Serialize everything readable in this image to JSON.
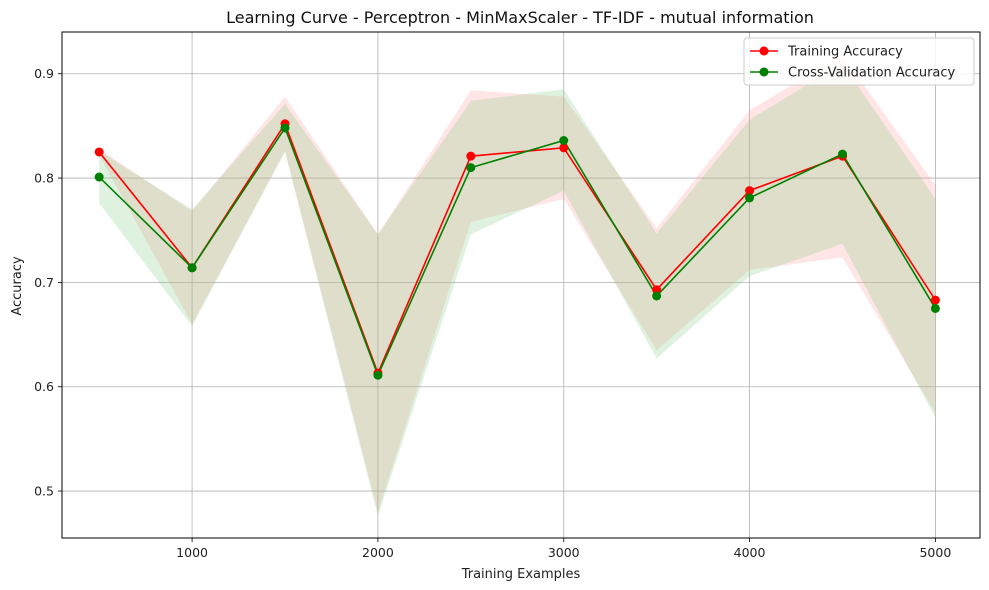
{
  "chart_data": {
    "type": "line",
    "title": "Learning Curve - Perceptron - MinMaxScaler - TF-IDF - mutual information",
    "xlabel": "Training Examples",
    "ylabel": "Accuracy",
    "xlim": [
      300,
      5240
    ],
    "ylim": [
      0.455,
      0.94
    ],
    "x_ticks": [
      1000,
      2000,
      3000,
      4000,
      5000
    ],
    "x_tick_labels": [
      "1000",
      "2000",
      "3000",
      "4000",
      "5000"
    ],
    "y_ticks": [
      0.5,
      0.6,
      0.7,
      0.8,
      0.9
    ],
    "y_tick_labels": [
      "0.5",
      "0.6",
      "0.7",
      "0.8",
      "0.9"
    ],
    "grid": true,
    "legend_position": "top-right",
    "x": [
      500,
      1000,
      1500,
      2000,
      2500,
      3000,
      3500,
      4000,
      4500,
      5000
    ],
    "series": [
      {
        "name": "Training Accuracy",
        "color": "#ff0000",
        "band_color": "#ff9999",
        "values": [
          0.825,
          0.714,
          0.852,
          0.613,
          0.821,
          0.829,
          0.693,
          0.788,
          0.821,
          0.683
        ],
        "lower": [
          0.822,
          0.66,
          0.826,
          0.48,
          0.758,
          0.78,
          0.635,
          0.712,
          0.724,
          0.575
        ],
        "upper": [
          0.828,
          0.768,
          0.878,
          0.746,
          0.884,
          0.878,
          0.752,
          0.865,
          0.918,
          0.793
        ]
      },
      {
        "name": "Cross-Validation Accuracy",
        "color": "#008000",
        "band_color": "#7fcc7f",
        "values": [
          0.801,
          0.714,
          0.848,
          0.611,
          0.81,
          0.836,
          0.687,
          0.781,
          0.823,
          0.675
        ],
        "lower": [
          0.776,
          0.658,
          0.825,
          0.476,
          0.746,
          0.788,
          0.627,
          0.706,
          0.737,
          0.57
        ],
        "upper": [
          0.826,
          0.77,
          0.871,
          0.746,
          0.874,
          0.885,
          0.747,
          0.856,
          0.91,
          0.78
        ]
      }
    ]
  }
}
